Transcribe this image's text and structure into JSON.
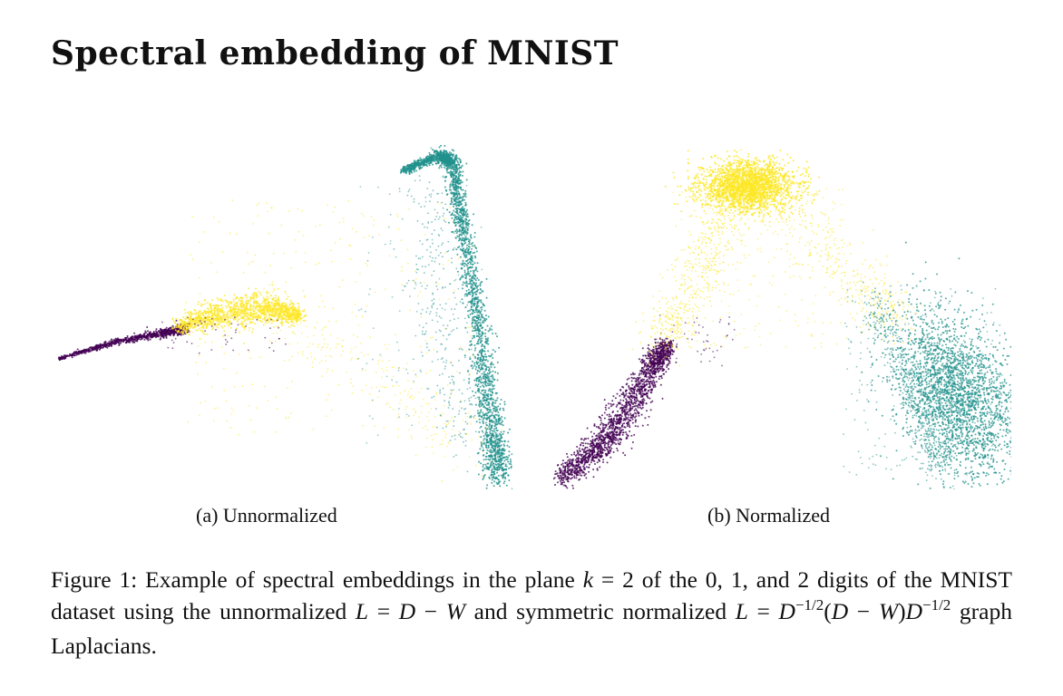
{
  "title": "Spectral embedding of MNIST",
  "colors": {
    "digit0": "#440154",
    "digit1": "#21918c",
    "digit2": "#fde725"
  },
  "subfigures": [
    {
      "label": "(a) Unnormalized"
    },
    {
      "label": "(b) Normalized"
    }
  ],
  "caption": {
    "prefix": "Figure 1: Example of spectral embeddings in the plane ",
    "k_var": "k",
    "k_eq": " = 2 of the 0, 1, and 2 digits of the MNIST dataset using the unnormalized ",
    "L1": "L",
    "eq1": " = ",
    "D1": "D",
    "minus1": " − ",
    "W1": "W",
    "mid": " and symmetric normalized ",
    "L2": "L",
    "eq2": " = ",
    "D2": "D",
    "exp1": "−1/2",
    "paren_open": "(",
    "D3": "D",
    "minus2": " − ",
    "W2": "W",
    "paren_close": ")",
    "D4": "D",
    "exp2": "−1/2",
    "suffix": " graph Laplacians."
  }
}
